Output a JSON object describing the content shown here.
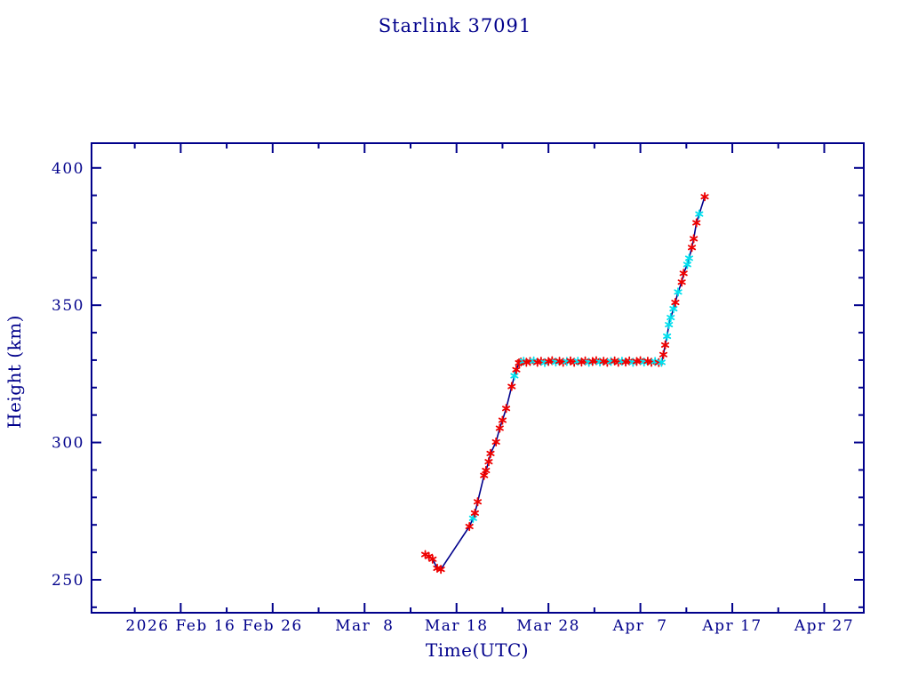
{
  "chart_data": {
    "type": "line",
    "title": "Starlink 37091",
    "xlabel": "Time(UTC)",
    "ylabel": "Height (km)",
    "x_unit": "days since 2026 Feb 16",
    "xlim": [
      -9.7,
      74.3
    ],
    "ylim": [
      238,
      409
    ],
    "grid": false,
    "legend": "none",
    "x_major_ticks": [
      {
        "day": 0,
        "label": "2026 Feb 16"
      },
      {
        "day": 10,
        "label": "Feb 26"
      },
      {
        "day": 20,
        "label": "Mar  8"
      },
      {
        "day": 30,
        "label": "Mar 18"
      },
      {
        "day": 40,
        "label": "Mar 28"
      },
      {
        "day": 50,
        "label": "Apr  7"
      },
      {
        "day": 60,
        "label": "Apr 17"
      },
      {
        "day": 70,
        "label": "Apr 27"
      }
    ],
    "x_minor_tick_days": [
      -5,
      5,
      15,
      25,
      35,
      45,
      55,
      65
    ],
    "y_major_ticks": [
      250,
      300,
      350,
      400
    ],
    "y_minor_ticks": [
      240,
      260,
      270,
      280,
      290,
      310,
      320,
      330,
      340,
      360,
      370,
      380,
      390
    ],
    "colors": {
      "axis": "#00008B",
      "text": "#00008B",
      "line": "#00008B",
      "marker_red": "#EE0000",
      "marker_cyan": "#00E0EE",
      "background": "#FFFFFF"
    },
    "marker_style": "asterisk",
    "points_format": [
      "day_since_2026_feb_16",
      "height_km",
      "marker_color"
    ],
    "points": [
      [
        26.6,
        259.2,
        "r"
      ],
      [
        27.0,
        258.5,
        "r"
      ],
      [
        27.4,
        257.5,
        "r"
      ],
      [
        27.9,
        254.2,
        "r"
      ],
      [
        28.3,
        253.8,
        "r"
      ],
      [
        31.4,
        269.4,
        "r"
      ],
      [
        31.8,
        272.4,
        "c"
      ],
      [
        32.0,
        274.3,
        "r"
      ],
      [
        32.3,
        278.4,
        "r"
      ],
      [
        33.0,
        288.0,
        "r"
      ],
      [
        33.2,
        289.8,
        "r"
      ],
      [
        33.5,
        293.0,
        "r"
      ],
      [
        33.7,
        296.0,
        "r"
      ],
      [
        34.3,
        300.2,
        "r"
      ],
      [
        34.7,
        305.2,
        "r"
      ],
      [
        35.0,
        308.1,
        "r"
      ],
      [
        35.4,
        312.4,
        "r"
      ],
      [
        36.0,
        320.4,
        "r"
      ],
      [
        36.3,
        324.3,
        "c"
      ],
      [
        36.5,
        326.5,
        "r"
      ],
      [
        36.8,
        329.0,
        "r"
      ],
      [
        37.0,
        329.3,
        "r"
      ],
      [
        37.3,
        329.6,
        "c"
      ],
      [
        37.6,
        329.2,
        "r"
      ],
      [
        38.0,
        329.5,
        "r"
      ],
      [
        38.4,
        329.7,
        "c"
      ],
      [
        38.8,
        329.2,
        "r"
      ],
      [
        39.2,
        329.6,
        "r"
      ],
      [
        39.6,
        329.1,
        "c"
      ],
      [
        40.0,
        329.5,
        "r"
      ],
      [
        40.4,
        329.8,
        "r"
      ],
      [
        40.8,
        329.3,
        "c"
      ],
      [
        41.2,
        329.6,
        "r"
      ],
      [
        41.6,
        329.2,
        "r"
      ],
      [
        42.0,
        329.5,
        "c"
      ],
      [
        42.4,
        329.7,
        "r"
      ],
      [
        42.8,
        329.2,
        "r"
      ],
      [
        43.2,
        329.6,
        "c"
      ],
      [
        43.6,
        329.3,
        "r"
      ],
      [
        44.0,
        329.7,
        "r"
      ],
      [
        44.4,
        329.2,
        "c"
      ],
      [
        44.8,
        329.5,
        "r"
      ],
      [
        45.2,
        329.8,
        "r"
      ],
      [
        45.6,
        329.3,
        "c"
      ],
      [
        46.0,
        329.6,
        "r"
      ],
      [
        46.4,
        329.2,
        "r"
      ],
      [
        46.8,
        329.5,
        "c"
      ],
      [
        47.2,
        329.7,
        "r"
      ],
      [
        47.6,
        329.2,
        "r"
      ],
      [
        48.0,
        329.6,
        "c"
      ],
      [
        48.4,
        329.3,
        "r"
      ],
      [
        48.8,
        329.7,
        "r"
      ],
      [
        49.2,
        329.2,
        "c"
      ],
      [
        49.6,
        329.5,
        "r"
      ],
      [
        50.0,
        329.8,
        "r"
      ],
      [
        50.4,
        329.3,
        "c"
      ],
      [
        50.8,
        329.6,
        "r"
      ],
      [
        51.2,
        329.2,
        "r"
      ],
      [
        51.6,
        329.5,
        "c"
      ],
      [
        52.0,
        329.1,
        "r"
      ],
      [
        52.3,
        329.2,
        "c"
      ],
      [
        52.5,
        332.0,
        "r"
      ],
      [
        52.7,
        335.5,
        "r"
      ],
      [
        52.9,
        338.7,
        "c"
      ],
      [
        53.1,
        342.9,
        "c"
      ],
      [
        53.3,
        345.5,
        "c"
      ],
      [
        53.6,
        348.7,
        "c"
      ],
      [
        53.8,
        351.0,
        "r"
      ],
      [
        54.1,
        354.8,
        "c"
      ],
      [
        54.5,
        358.4,
        "r"
      ],
      [
        54.7,
        361.6,
        "r"
      ],
      [
        55.1,
        364.8,
        "c"
      ],
      [
        55.3,
        367.1,
        "c"
      ],
      [
        55.6,
        371.0,
        "r"
      ],
      [
        55.8,
        374.2,
        "r"
      ],
      [
        56.1,
        380.0,
        "r"
      ],
      [
        56.4,
        383.2,
        "c"
      ],
      [
        57.0,
        389.5,
        "r"
      ]
    ]
  }
}
